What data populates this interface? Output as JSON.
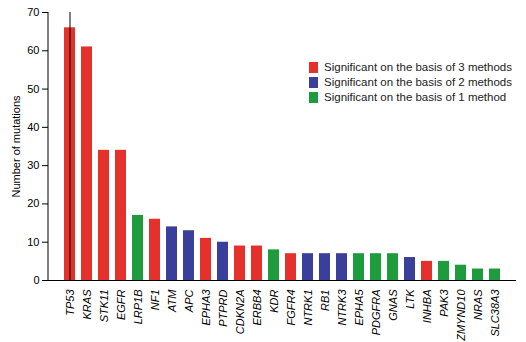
{
  "chart_data": {
    "type": "bar",
    "y_label": "Number of mutations",
    "categories": [
      "TP53",
      "KRAS",
      "STK11",
      "EGFR",
      "LRP1B",
      "NF1",
      "ATM",
      "APC",
      "EPHA3",
      "PTPRD",
      "CDKN2A",
      "ERBB4",
      "KDR",
      "FGFR4",
      "NTRK1",
      "RB1",
      "NTRK3",
      "EPHA5",
      "PDGFRA",
      "GNAS",
      "LTK",
      "INHBA",
      "PAK3",
      "ZMYND10",
      "NRAS",
      "SLC38A3"
    ],
    "series": [
      {
        "name": "Significant on the basis of 3 methods",
        "color": "#e4312b",
        "values": [
          66,
          61,
          34,
          34,
          null,
          16,
          null,
          null,
          11,
          null,
          9,
          9,
          null,
          7,
          null,
          null,
          null,
          null,
          null,
          null,
          null,
          5,
          null,
          null,
          null,
          null
        ]
      },
      {
        "name": "Significant on the basis of 2 methods",
        "color": "#3a3f9c",
        "values": [
          null,
          null,
          null,
          null,
          null,
          null,
          14,
          13,
          null,
          10,
          null,
          null,
          null,
          null,
          7,
          7,
          7,
          null,
          null,
          null,
          6,
          null,
          null,
          null,
          null,
          null
        ]
      },
      {
        "name": "Significant on the basis of 1 method",
        "color": "#1e9b3c",
        "values": [
          null,
          null,
          null,
          null,
          17,
          null,
          null,
          null,
          null,
          null,
          null,
          null,
          8,
          null,
          null,
          null,
          null,
          7,
          7,
          7,
          null,
          null,
          5,
          4,
          3,
          3
        ]
      }
    ],
    "ylim": [
      0,
      70
    ],
    "yticks": [
      0,
      10,
      20,
      30,
      40,
      50,
      60,
      70
    ],
    "stacked": false,
    "legend": "upper right"
  }
}
